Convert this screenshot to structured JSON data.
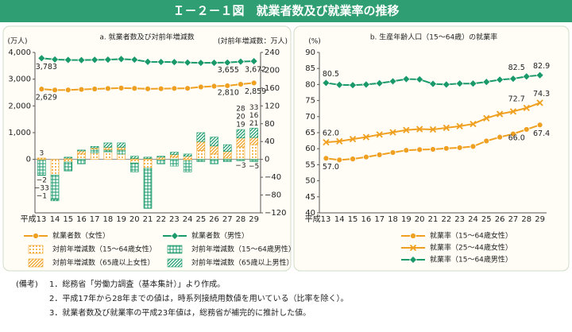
{
  "header": {
    "title": "Ｉ－２－１図　就業者数及び就業率の推移"
  },
  "chart_data": [
    {
      "type": "combo",
      "subtitle": "a. 就業者数及び対前年増減数",
      "y_label": "(万人)",
      "y2_label": "(対前年増減数：万人)",
      "categories": [
        "平成13",
        "14",
        "15",
        "16",
        "17",
        "18",
        "19",
        "20",
        "21",
        "22",
        "23",
        "24",
        "25",
        "26",
        "27",
        "28",
        "29"
      ],
      "ylim": [
        -2000,
        4000
      ],
      "yticks": [
        0,
        {
          "value": 1000,
          "label": "1,000"
        },
        {
          "value": 2000,
          "label": "2,000"
        },
        {
          "value": 3000,
          "label": "3,000"
        },
        {
          "value": 4000,
          "label": "4,000"
        }
      ],
      "y2lim": [
        -120,
        240
      ],
      "y2ticks": [
        {
          "value": -120,
          "label": "−120"
        },
        {
          "value": -80,
          "label": "−80"
        },
        {
          "value": -40,
          "label": "−40"
        },
        0,
        40,
        80,
        120,
        160,
        200,
        240
      ],
      "series": [
        {
          "name": "就業者数（女性）",
          "type": "line",
          "color": "#f0a020",
          "marker": "circle",
          "values": [
            2629,
            2594,
            2597,
            2616,
            2633,
            2652,
            2667,
            2656,
            2638,
            2643,
            2654,
            2658,
            2707,
            2737,
            2754,
            2810,
            2859
          ],
          "value_labels": [
            "2,629",
            null,
            null,
            null,
            null,
            null,
            null,
            null,
            null,
            null,
            null,
            null,
            null,
            null,
            null,
            "2,810",
            "2,859"
          ]
        },
        {
          "name": "就業者数（男性）",
          "type": "line",
          "color": "#1a9a6a",
          "marker": "diamond",
          "values": [
            3783,
            3736,
            3719,
            3713,
            3723,
            3730,
            3753,
            3729,
            3649,
            3643,
            3639,
            3622,
            3610,
            3613,
            3622,
            3655,
            3672
          ],
          "value_labels": [
            "3,783",
            null,
            null,
            null,
            null,
            null,
            null,
            null,
            null,
            null,
            null,
            null,
            null,
            null,
            null,
            "3,655",
            "3,672"
          ]
        },
        {
          "name": "対前年増減数（15～64歳女性）",
          "type": "bar",
          "axis": "y2",
          "color": "#f0a020",
          "pattern": "dots",
          "values": [
            -2,
            -35,
            -6,
            12,
            15,
            17,
            12,
            -8,
            -20,
            0,
            5,
            -3,
            20,
            12,
            3,
            28,
            33
          ],
          "value_labels": [
            "−2",
            null,
            null,
            null,
            null,
            null,
            null,
            null,
            null,
            null,
            null,
            null,
            null,
            null,
            null,
            "28",
            "33"
          ]
        },
        {
          "name": "対前年増減数（15～64歳男性）",
          "type": "bar",
          "axis": "y2",
          "color": "#1a9a6a",
          "pattern": "grid",
          "values": [
            -33,
            -55,
            -20,
            -10,
            8,
            5,
            10,
            -20,
            -90,
            -10,
            -15,
            -25,
            -5,
            -10,
            -5,
            -3,
            -5
          ],
          "value_labels": [
            "−33",
            null,
            null,
            null,
            null,
            null,
            null,
            null,
            null,
            null,
            null,
            null,
            null,
            null,
            null,
            "−3",
            "−5"
          ]
        },
        {
          "name": "対前年増減数（65歳以上女性）",
          "type": "bar",
          "axis": "y2",
          "color": "#f0a020",
          "pattern": "hatch",
          "values": [
            3,
            0,
            3,
            7,
            3,
            5,
            5,
            2,
            2,
            5,
            6,
            7,
            20,
            18,
            15,
            20,
            16
          ],
          "value_labels": [
            "3",
            null,
            null,
            null,
            null,
            null,
            null,
            null,
            null,
            null,
            null,
            null,
            null,
            null,
            null,
            "20",
            "16"
          ]
        },
        {
          "name": "対前年増減数（65歳以上男性）",
          "type": "bar",
          "axis": "y2",
          "color": "#1a9a6a",
          "pattern": "hatch",
          "values": [
            -1,
            -3,
            2,
            2,
            3,
            10,
            10,
            5,
            3,
            2,
            5,
            5,
            20,
            20,
            15,
            19,
            21
          ],
          "value_labels": [
            "−1",
            null,
            null,
            null,
            null,
            null,
            null,
            null,
            null,
            null,
            null,
            null,
            null,
            null,
            null,
            "19",
            "21"
          ]
        }
      ]
    },
    {
      "type": "line",
      "subtitle": "b. 生産年齢人口（15～64歳）の就業率",
      "y_label": "(%)",
      "categories": [
        "平成13",
        "14",
        "15",
        "16",
        "17",
        "18",
        "19",
        "20",
        "21",
        "22",
        "23",
        "24",
        "25",
        "26",
        "27",
        "28",
        "29"
      ],
      "ylim": [
        40,
        90
      ],
      "yticks": [
        40,
        45,
        50,
        55,
        60,
        65,
        70,
        75,
        80,
        85,
        90
      ],
      "series": [
        {
          "name": "就業率（15～64歳女性）",
          "color": "#f0a020",
          "marker": "circle",
          "values": [
            57.0,
            56.5,
            56.8,
            57.4,
            58.1,
            58.8,
            59.5,
            59.7,
            59.8,
            60.1,
            60.3,
            60.7,
            62.4,
            63.6,
            64.6,
            66.0,
            67.4
          ],
          "value_labels": [
            "57.0",
            null,
            null,
            null,
            null,
            null,
            null,
            null,
            null,
            null,
            null,
            null,
            null,
            null,
            null,
            "66.0",
            "67.4"
          ]
        },
        {
          "name": "就業率（25～44歳女性）",
          "color": "#f0a020",
          "marker": "x",
          "values": [
            62.0,
            62.3,
            63.0,
            63.6,
            64.4,
            65.1,
            65.8,
            66.1,
            66.0,
            66.5,
            67.0,
            67.7,
            69.5,
            70.8,
            71.6,
            72.7,
            74.3
          ],
          "value_labels": [
            "62.0",
            null,
            null,
            null,
            null,
            null,
            null,
            null,
            null,
            null,
            null,
            null,
            null,
            null,
            null,
            "72.7",
            "74.3"
          ]
        },
        {
          "name": "就業率（15～64歳男性）",
          "color": "#1a9a6a",
          "marker": "diamond",
          "values": [
            80.5,
            79.9,
            79.8,
            80.0,
            80.4,
            81.0,
            81.7,
            81.6,
            80.2,
            80.0,
            80.3,
            80.3,
            80.8,
            81.5,
            81.8,
            82.5,
            82.9
          ],
          "value_labels": [
            "80.5",
            null,
            null,
            null,
            null,
            null,
            null,
            null,
            null,
            null,
            null,
            null,
            null,
            null,
            null,
            "82.5",
            "82.9"
          ]
        }
      ]
    }
  ],
  "notes": {
    "label": "(備考)",
    "items": [
      "1．総務省「労働力調査（基本集計）」より作成。",
      "2．平成17年から28年までの値は，時系列接続用数値を用いている（比率を除く）。",
      "3．就業者数及び就業率の平成23年値は，総務省が補完的に推計した値。"
    ]
  }
}
